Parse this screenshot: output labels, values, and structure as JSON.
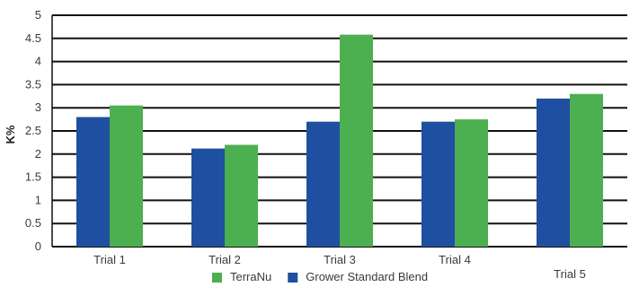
{
  "chart_data": {
    "type": "bar",
    "categories": [
      "Trial 1",
      "Trial 2",
      "Trial 3",
      "Trial 4",
      "Trial 5"
    ],
    "series": [
      {
        "name": "Grower Standard Blend",
        "color": "#1f4fa0",
        "values": [
          2.8,
          2.12,
          2.7,
          2.7,
          3.2
        ]
      },
      {
        "name": "TerraNu",
        "color": "#4caf50",
        "values": [
          3.05,
          2.2,
          4.58,
          2.75,
          3.3
        ]
      }
    ],
    "ylabel": "K%",
    "xlabel": "",
    "title": "",
    "ylim": [
      0,
      5
    ],
    "yticks": [
      "0",
      "0.5",
      "1",
      "1.5",
      "2",
      "2.5",
      "3",
      "3.5",
      "4",
      "4.5",
      "5"
    ],
    "grid": true,
    "legend": {
      "placement": "bottom-center",
      "order": [
        "TerraNu",
        "Grower Standard Blend"
      ]
    }
  }
}
